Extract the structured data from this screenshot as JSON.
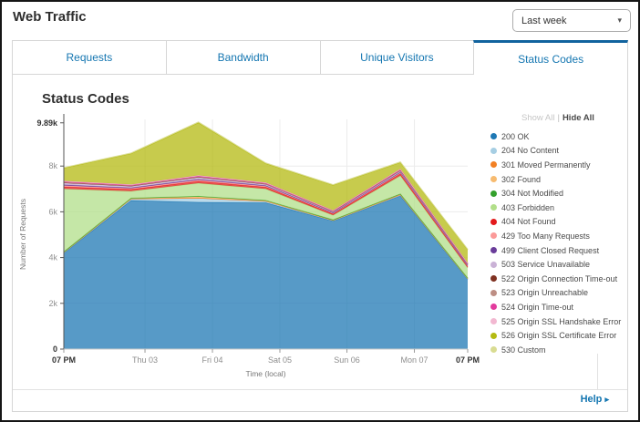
{
  "header": {
    "title": "Web Traffic",
    "range_dropdown": {
      "value": "Last week",
      "caret": "▾"
    }
  },
  "tabs": [
    {
      "label": "Requests",
      "active": false
    },
    {
      "label": "Bandwidth",
      "active": false
    },
    {
      "label": "Unique Visitors",
      "active": false
    },
    {
      "label": "Status Codes",
      "active": true
    }
  ],
  "panel": {
    "heading": "Status Codes",
    "legend": {
      "show_all_label": "Show All",
      "separator": "|",
      "hide_all_label": "Hide All"
    },
    "footer": {
      "help_label": "Help",
      "help_arrow": "▸"
    }
  },
  "chart_data": {
    "type": "area",
    "stacked": true,
    "title": "Status Codes",
    "x_axis": {
      "title": "Time (local)",
      "labels": [
        {
          "text": "07 PM",
          "pos": 0,
          "strong": true
        },
        {
          "text": "Thu 03",
          "pos": 0.201
        },
        {
          "text": "Fri 04",
          "pos": 0.368
        },
        {
          "text": "Sat 05",
          "pos": 0.535
        },
        {
          "text": "Sun 06",
          "pos": 0.701
        },
        {
          "text": "Mon 07",
          "pos": 0.868
        },
        {
          "text": "07 PM",
          "pos": 1,
          "strong": true
        }
      ]
    },
    "y_axis": {
      "title": "Number of Requests",
      "max": 10040,
      "ticks": [
        {
          "label": "0",
          "value": 0,
          "strong": true
        },
        {
          "label": "2k",
          "value": 2000
        },
        {
          "label": "4k",
          "value": 4000
        },
        {
          "label": "6k",
          "value": 6000
        },
        {
          "label": "8k",
          "value": 8000
        },
        {
          "label": "9.89k",
          "value": 9890,
          "strong": true
        }
      ]
    },
    "points_per_series": 7,
    "series": [
      {
        "name": "200 OK",
        "color": "#1f78b4",
        "values": [
          4200,
          6500,
          6420,
          6400,
          5600,
          6700,
          3050
        ]
      },
      {
        "name": "204 No Content",
        "color": "#a6cee3",
        "values": [
          20,
          60,
          170,
          60,
          20,
          40,
          20
        ]
      },
      {
        "name": "301 Moved Permanently",
        "color": "#f28024",
        "values": [
          8,
          8,
          15,
          8,
          8,
          8,
          8
        ]
      },
      {
        "name": "302 Found",
        "color": "#f7bb70",
        "values": [
          15,
          25,
          60,
          25,
          15,
          25,
          15
        ]
      },
      {
        "name": "304 Not Modified",
        "color": "#33a02c",
        "values": [
          8,
          8,
          15,
          8,
          8,
          8,
          8
        ]
      },
      {
        "name": "403 Forbidden",
        "color": "#b2df8a",
        "values": [
          2750,
          300,
          570,
          500,
          200,
          800,
          450
        ]
      },
      {
        "name": "404 Not Found",
        "color": "#e31a1c",
        "values": [
          90,
          80,
          85,
          75,
          55,
          85,
          55
        ]
      },
      {
        "name": "429 Too Many Requests",
        "color": "#fb9a99",
        "values": [
          55,
          45,
          55,
          45,
          35,
          45,
          35
        ]
      },
      {
        "name": "499 Client Closed Request",
        "color": "#6a3d9a",
        "values": [
          35,
          25,
          35,
          25,
          18,
          25,
          18
        ]
      },
      {
        "name": "503 Service Unavailable",
        "color": "#cab2d6",
        "values": [
          80,
          70,
          80,
          60,
          45,
          65,
          45
        ]
      },
      {
        "name": "522 Origin Connection Time-out",
        "color": "#7f3121",
        "values": [
          15,
          12,
          15,
          12,
          10,
          12,
          10
        ]
      },
      {
        "name": "523 Origin Unreachable",
        "color": "#bd8e84",
        "values": [
          15,
          12,
          15,
          12,
          10,
          12,
          10
        ]
      },
      {
        "name": "524 Origin Time-out",
        "color": "#e23b9d",
        "values": [
          25,
          22,
          25,
          22,
          18,
          22,
          18
        ]
      },
      {
        "name": "525 Origin SSL Handshake Error",
        "color": "#f2b8d1",
        "values": [
          35,
          30,
          35,
          30,
          25,
          30,
          25
        ]
      },
      {
        "name": "526 Origin SSL Certificate Error",
        "color": "#b4ba12",
        "values": [
          560,
          1350,
          2300,
          830,
          1100,
          280,
          580
        ]
      },
      {
        "name": "530 Custom",
        "color": "#d9dc92",
        "values": [
          25,
          25,
          35,
          25,
          20,
          25,
          20
        ]
      }
    ]
  }
}
